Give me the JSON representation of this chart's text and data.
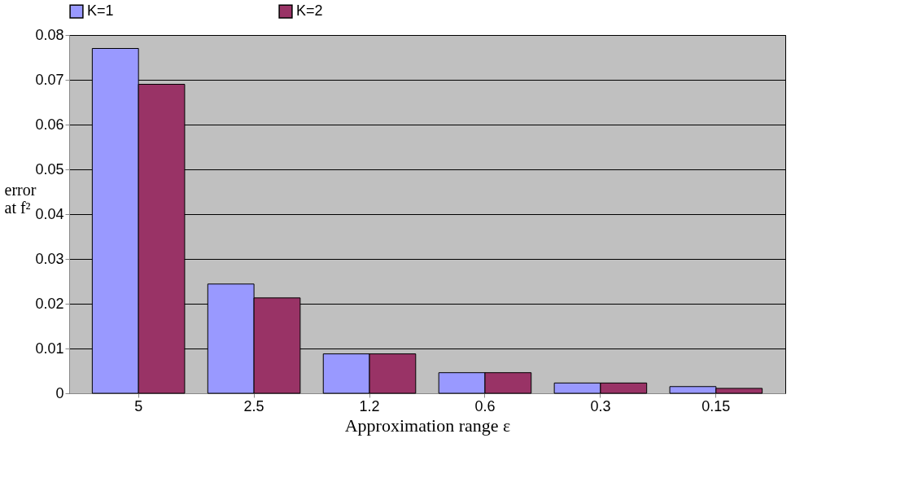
{
  "chart_data": {
    "type": "bar",
    "xlabel": "Approximation range ε",
    "ylabel": "error\nat f²",
    "categories": [
      "5",
      "2.5",
      "1.2",
      "0.6",
      "0.3",
      "0.15"
    ],
    "series": [
      {
        "name": "K=1",
        "color": "#9999ff",
        "values": [
          0.077,
          0.0244,
          0.0088,
          0.0046,
          0.0023,
          0.0015
        ]
      },
      {
        "name": "K=2",
        "color": "#993366",
        "values": [
          0.069,
          0.0213,
          0.0088,
          0.0046,
          0.0023,
          0.0011
        ]
      }
    ],
    "ylim": [
      0,
      0.08
    ],
    "yticks": [
      0,
      0.01,
      0.02,
      0.03,
      0.04,
      0.05,
      0.06,
      0.07,
      0.08
    ],
    "grid": "y",
    "legend": "top"
  }
}
